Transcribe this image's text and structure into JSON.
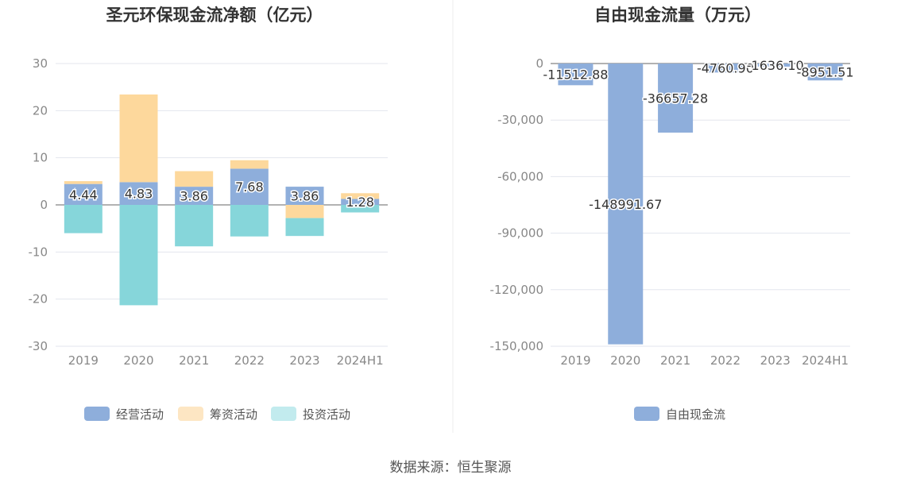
{
  "source_text": "数据来源：恒生聚源",
  "chart_data": [
    {
      "type": "bar",
      "stacked": true,
      "title": "圣元环保现金流净额（亿元）",
      "categories": [
        "2019",
        "2020",
        "2021",
        "2022",
        "2023",
        "2024H1"
      ],
      "ylim": [
        -30,
        30
      ],
      "yticks": [
        30,
        20,
        10,
        0,
        -10,
        -20,
        -30
      ],
      "grid": true,
      "legend_position": "bottom",
      "series": [
        {
          "name": "经营活动",
          "color": "#8eaedb",
          "values": [
            4.44,
            4.83,
            3.86,
            7.68,
            3.86,
            1.28
          ],
          "labels": [
            "4.44",
            "4.83",
            "3.86",
            "7.68",
            "3.86",
            "1.28"
          ]
        },
        {
          "name": "筹资活动",
          "color": "#fdd89c",
          "values": [
            0.6,
            18.6,
            3.3,
            1.8,
            -2.8,
            1.2
          ]
        },
        {
          "name": "投资活动",
          "color": "#86d6da",
          "values": [
            -6.0,
            -21.3,
            -8.8,
            -6.7,
            -3.8,
            -1.6
          ]
        }
      ],
      "legend_colors": [
        "#8eaedb",
        "#fde6c3",
        "#c2ebee"
      ]
    },
    {
      "type": "bar",
      "title": "自由现金流量（万元）",
      "categories": [
        "2019",
        "2020",
        "2021",
        "2022",
        "2023",
        "2024H1"
      ],
      "ylim": [
        -150000,
        0
      ],
      "yticks": [
        0,
        -30000,
        -60000,
        -90000,
        -120000,
        -150000
      ],
      "ytick_labels": [
        "0",
        "-30,000",
        "-60,000",
        "-90,000",
        "-120,000",
        "-150,000"
      ],
      "grid": true,
      "legend_position": "bottom",
      "series": [
        {
          "name": "自由现金流",
          "color": "#8eaedb",
          "values": [
            -11512.88,
            -148991.67,
            -36657.28,
            -4760.9,
            -1636.1,
            -8951.51
          ],
          "labels": [
            "-11512.88",
            "-148991.67",
            "-36657.28",
            "-4760.90",
            "-1636.10",
            "-8951.51"
          ]
        }
      ]
    }
  ]
}
